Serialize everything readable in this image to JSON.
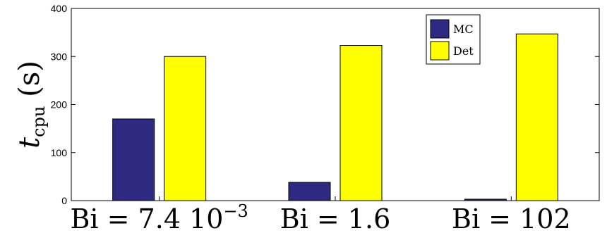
{
  "chart_data": {
    "type": "bar",
    "categories": [
      "Bi = 7.4 10−3",
      "Bi = 1.6",
      "Bi = 102"
    ],
    "category_parts": [
      {
        "main": "Bi = 7.4 10",
        "sup": "−3"
      },
      {
        "main": "Bi = 1.6",
        "sup": ""
      },
      {
        "main": "Bi = 102",
        "sup": ""
      }
    ],
    "series": [
      {
        "name": "MC",
        "color": "#2e2a82",
        "values": [
          170,
          38,
          3
        ]
      },
      {
        "name": "Det",
        "color": "#ffff00",
        "values": [
          300,
          323,
          347
        ]
      }
    ],
    "ylabel": {
      "main": "t",
      "sub": "cpu",
      "unit": "(s)"
    },
    "ylim": [
      0,
      400
    ],
    "yticks": [
      "0",
      "100",
      "200",
      "300",
      "400"
    ],
    "grid": false,
    "legend_position": "top-right"
  }
}
